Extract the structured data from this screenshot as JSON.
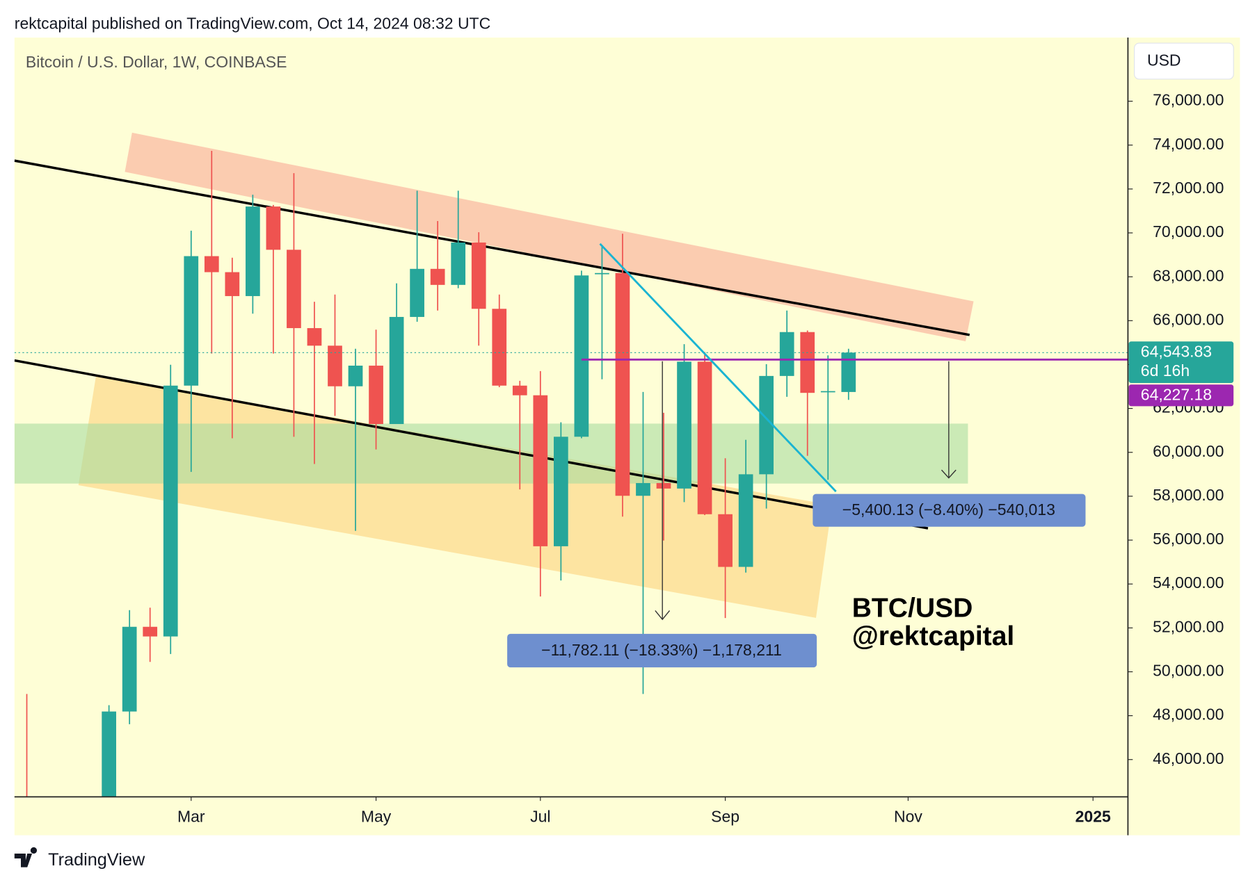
{
  "header": {
    "author_line": "rektcapital published on TradingView.com, Oct 14, 2024 08:32 UTC"
  },
  "chart_data": {
    "type": "candlestick",
    "title": "Bitcoin / U.S. Dollar, 1W, COINBASE",
    "currency_button": "USD",
    "x": [
      0,
      4,
      5,
      6,
      7,
      8,
      9,
      10,
      11,
      12,
      13,
      14,
      15,
      16,
      17,
      18,
      19,
      20,
      21,
      22,
      23,
      24,
      25,
      26,
      27,
      28,
      29,
      30,
      31,
      32,
      33,
      34,
      35,
      36,
      37,
      38,
      39,
      40
    ],
    "open": [
      43000,
      43000,
      48190,
      52050,
      51610,
      63040,
      68940,
      68210,
      67120,
      71200,
      69230,
      65660,
      64860,
      63010,
      63950,
      61290,
      66170,
      68360,
      67630,
      69560,
      66540,
      63040,
      62600,
      55720,
      60710,
      68140,
      68170,
      58020,
      58600,
      58350,
      64130,
      57180,
      54780,
      59000,
      63480,
      65480,
      62750,
      62750
    ],
    "high": [
      48990,
      48480,
      52810,
      52920,
      63990,
      70100,
      73740,
      68870,
      71740,
      71270,
      72720,
      66860,
      67190,
      64720,
      65590,
      67700,
      71920,
      70540,
      71920,
      70030,
      67190,
      63260,
      63700,
      61370,
      68280,
      69450,
      69960,
      62750,
      61800,
      64930,
      64570,
      59730,
      60570,
      64020,
      66460,
      65550,
      64420,
      64720
    ],
    "low": [
      41500,
      42500,
      47610,
      50450,
      50810,
      59110,
      64500,
      60640,
      66320,
      64500,
      60710,
      59470,
      61660,
      56420,
      60130,
      61290,
      65950,
      66460,
      67480,
      64860,
      62970,
      58310,
      53430,
      54160,
      60640,
      63330,
      57070,
      48990,
      55980,
      57730,
      57140,
      52450,
      54520,
      57440,
      62530,
      59840,
      58750,
      62390
    ],
    "close": [
      42500,
      48190,
      52050,
      51610,
      63040,
      68940,
      68210,
      67120,
      71200,
      69230,
      65660,
      64860,
      63010,
      63950,
      61290,
      66170,
      68360,
      67630,
      69560,
      66540,
      63040,
      62600,
      55720,
      60710,
      68060,
      68170,
      58020,
      58600,
      58350,
      64130,
      57180,
      54780,
      59000,
      63480,
      65480,
      62710,
      62790,
      64543.83
    ],
    "up_color": "#26a69a",
    "down_color": "#ef5350",
    "xlim": [
      -0.6,
      53.6
    ],
    "xticks": [
      {
        "value": 8,
        "label": "Mar"
      },
      {
        "value": 17,
        "label": "May"
      },
      {
        "value": 25,
        "label": "Jul"
      },
      {
        "value": 34,
        "label": "Sep"
      },
      {
        "value": 42.9,
        "label": "Nov"
      },
      {
        "value": 51.9,
        "label": "2025"
      }
    ],
    "ylim": [
      44300,
      78900
    ],
    "yticks": [
      {
        "value": 46000,
        "label": "46,000.00"
      },
      {
        "value": 48000,
        "label": "48,000.00"
      },
      {
        "value": 50000,
        "label": "50,000.00"
      },
      {
        "value": 52000,
        "label": "52,000.00"
      },
      {
        "value": 54000,
        "label": "54,000.00"
      },
      {
        "value": 56000,
        "label": "56,000.00"
      },
      {
        "value": 58000,
        "label": "58,000.00"
      },
      {
        "value": 60000,
        "label": "60,000.00"
      },
      {
        "value": 62000,
        "label": "62,000.00"
      },
      {
        "value": 64000,
        "label": "64,000.00"
      },
      {
        "value": 66000,
        "label": "66,000.00"
      },
      {
        "value": 68000,
        "label": "68,000.00"
      },
      {
        "value": 70000,
        "label": "70,000.00"
      },
      {
        "value": 72000,
        "label": "72,000.00"
      },
      {
        "value": 74000,
        "label": "74,000.00"
      },
      {
        "value": 76000,
        "label": "76,000.00"
      }
    ],
    "current_price": {
      "value": 64543.83,
      "label": "64,543.83"
    },
    "countdown": "6d 16h",
    "level": {
      "value": 64227.18,
      "label": "64,227.18"
    },
    "annotations": [
      "−5,400.13 (−8.40%) −540,013",
      "−11,782.11 (−18.33%) −1,178,211"
    ],
    "watermark": [
      "BTC/USD",
      "@rektcapital"
    ]
  },
  "footer": {
    "brand": "TradingView"
  }
}
